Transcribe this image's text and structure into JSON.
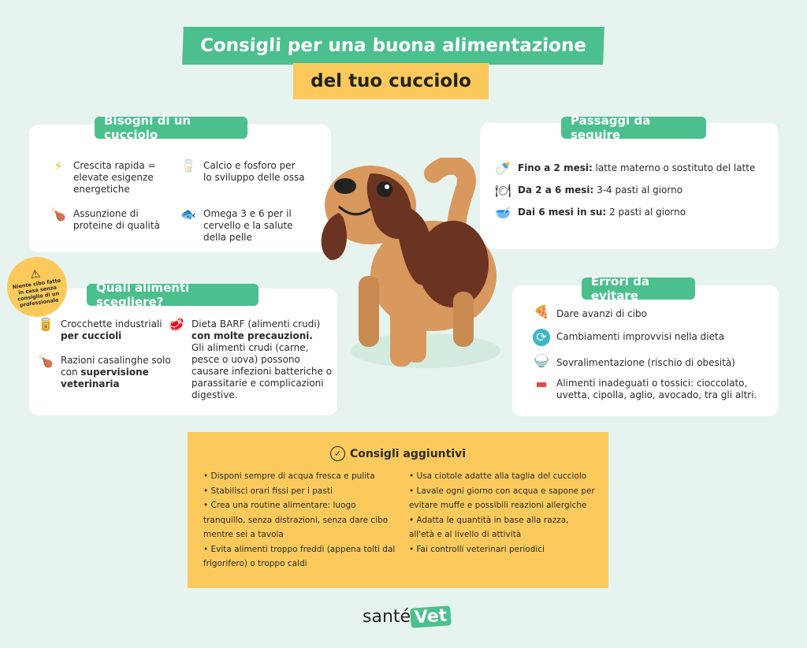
{
  "header": {
    "title_line1": "Consigli per una buona alimentazione",
    "title_line2": "del tuo cucciolo"
  },
  "needs": {
    "title": "Bisogni di un cucciolo",
    "items": [
      {
        "icon": "lightning-icon",
        "text": "Crescita rapida = elevate esigenze energetiche"
      },
      {
        "icon": "milk-glass-icon",
        "text": "Calcio e fosforo per lo sviluppo delle ossa"
      },
      {
        "icon": "chicken-leg-icon",
        "text": "Assunzione di proteine di qualità"
      },
      {
        "icon": "fish-icon",
        "text": "Omega 3 e 6 per il cervello e la salute della pelle"
      }
    ]
  },
  "steps": {
    "title": "Passaggi da seguire",
    "items": [
      {
        "icon": "baby-bottle-icon",
        "bold": "Fino a 2 mesi:",
        "text": " latte materno o sostituto del latte"
      },
      {
        "icon": "plate-icon",
        "bold": "Da 2 a 6 mesi:",
        "text": " 3-4 pasti al giorno"
      },
      {
        "icon": "bowl-icon",
        "bold": "Dai 6 mesi in su:",
        "text": " 2 pasti al giorno"
      }
    ]
  },
  "warning": {
    "icon": "warning-icon",
    "text": "Niente cibo fatto in casa senza consiglio di un professionale"
  },
  "foods": {
    "title": "Quali alimenti scegliere?",
    "kibble": {
      "icon": "can-icon",
      "text": "Crocchette industriali ",
      "bold": "per cuccioli"
    },
    "homemade": {
      "icon": "chicken-leg-icon",
      "text": "Razioni casalinghe solo con ",
      "bold": "supervisione veterinaria"
    },
    "barf": {
      "icon": "meat-icon",
      "text": "Dieta BARF (alimenti crudi) ",
      "bold": "con molte precauzioni.",
      "extra": "Gli alimenti crudi (carne, pesce o uova) possono causare infezioni batteriche o parassitarie e complicazioni digestive."
    }
  },
  "errors": {
    "title": "Errori da evitare",
    "items": [
      {
        "icon": "pizza-icon",
        "text": "Dare avanzi di cibo"
      },
      {
        "icon": "refresh-icon",
        "text": "Cambiamenti improvvisi nella dieta"
      },
      {
        "icon": "food-bowl-icon",
        "text": "Sovralimentazione (rischio di obesità)"
      },
      {
        "icon": "sausage-icon",
        "text": "Alimenti inadeguati o tossici: cioccolato, uvetta, cipolla, aglio, avocado, tra gli altri."
      }
    ]
  },
  "extra": {
    "title": "Consigli aggiuntivi",
    "icon": "check-circle-icon",
    "left": [
      "• Disponi sempre di acqua fresca e pulita",
      "• Stabilisci orari fissi per i pasti",
      "• Crea una routine alimentare: luogo tranquillo, senza distrazioni, senza dare cibo mentre sei a tavola",
      "• Evita alimenti troppo freddi (appena tolti dal frigorifero) o troppo caldi"
    ],
    "right": [
      "• Usa ciotole adatte alla taglia del cucciolo",
      "• Lavale ogni giorno con acqua e sapone per evitare muffe e possibili reazioni allergiche",
      "• Adatta le quantità in base alla razza, all'età e al livello di attività",
      "• Fai controlli veterinari periodici"
    ]
  },
  "logo": {
    "part1": "santé",
    "part2": "Vet"
  },
  "colors": {
    "green": "#4cbf8e",
    "yellow": "#fcca5c",
    "background": "#e6f3ee"
  }
}
